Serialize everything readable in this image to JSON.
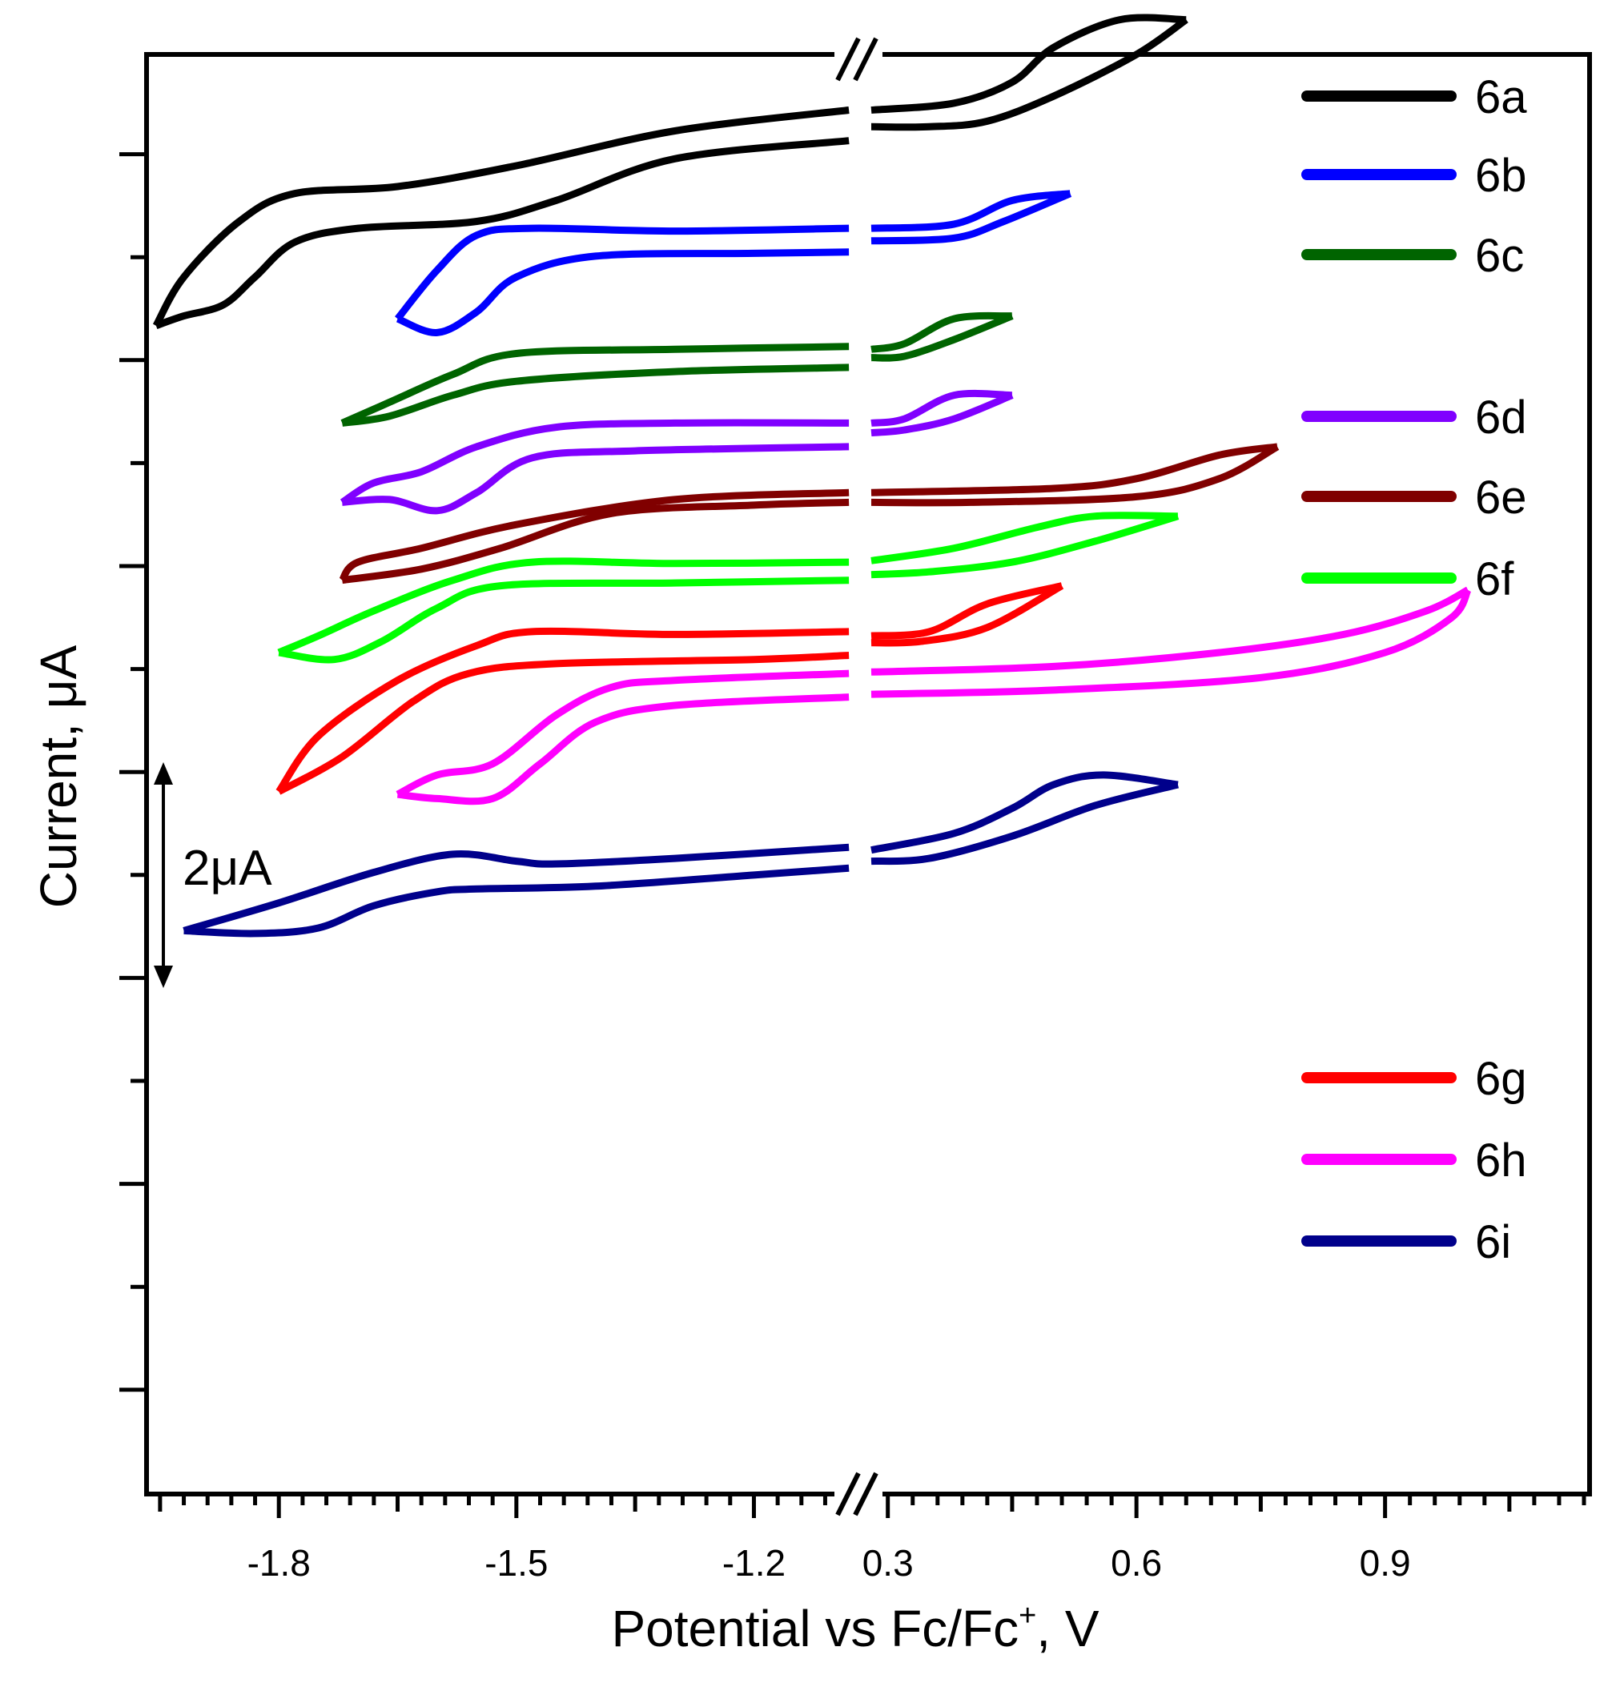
{
  "chart_data": {
    "type": "line",
    "title": "",
    "xlabel": "Potential vs Fc/Fc",
    "xlabel_sup": "+",
    "xlabel_suffix": ", V",
    "ylabel": "Current, μA",
    "scale_bar_label": "2μA",
    "scale_bar_value_uA": 2,
    "axis_break": "//",
    "x_segments": [
      {
        "range": [
          -1.96,
          -1.07
        ],
        "ticks": [
          "-1.8",
          "-1.5",
          "-1.2"
        ],
        "tick_values": [
          -1.8,
          -1.5,
          -1.2
        ]
      },
      {
        "range": [
          0.28,
          1.14
        ],
        "ticks": [
          "0.3",
          "0.6",
          "0.9"
        ],
        "tick_values": [
          0.3,
          0.6,
          0.9
        ]
      }
    ],
    "ylim": [
      -1.85,
      8.5
    ],
    "y_ticks_labeled": false,
    "series": [
      {
        "name": "6a",
        "color": "#000000",
        "neg_forward": [
          [
            -1.08,
            8.1
          ],
          [
            -1.3,
            7.95
          ],
          [
            -1.5,
            7.7
          ],
          [
            -1.65,
            7.55
          ],
          [
            -1.78,
            7.5
          ],
          [
            -1.85,
            7.3
          ],
          [
            -1.92,
            6.9
          ],
          [
            -1.955,
            6.55
          ]
        ],
        "neg_return": [
          [
            -1.955,
            6.55
          ],
          [
            -1.92,
            6.62
          ],
          [
            -1.87,
            6.7
          ],
          [
            -1.83,
            6.9
          ],
          [
            -1.78,
            7.15
          ],
          [
            -1.7,
            7.25
          ],
          [
            -1.55,
            7.3
          ],
          [
            -1.45,
            7.45
          ],
          [
            -1.3,
            7.75
          ],
          [
            -1.08,
            7.88
          ]
        ],
        "pos_forward": [
          [
            0.28,
            8.1
          ],
          [
            0.38,
            8.15
          ],
          [
            0.45,
            8.3
          ],
          [
            0.5,
            8.55
          ],
          [
            0.58,
            8.75
          ],
          [
            0.66,
            8.75
          ]
        ],
        "pos_return": [
          [
            0.66,
            8.75
          ],
          [
            0.6,
            8.5
          ],
          [
            0.5,
            8.2
          ],
          [
            0.42,
            8.02
          ],
          [
            0.35,
            7.98
          ],
          [
            0.28,
            7.98
          ]
        ]
      },
      {
        "name": "6b",
        "color": "#0000ff",
        "neg_forward": [
          [
            -1.08,
            7.25
          ],
          [
            -1.3,
            7.23
          ],
          [
            -1.48,
            7.25
          ],
          [
            -1.55,
            7.2
          ],
          [
            -1.6,
            6.95
          ],
          [
            -1.65,
            6.6
          ]
        ],
        "neg_return": [
          [
            -1.65,
            6.6
          ],
          [
            -1.6,
            6.5
          ],
          [
            -1.55,
            6.65
          ],
          [
            -1.5,
            6.9
          ],
          [
            -1.4,
            7.05
          ],
          [
            -1.2,
            7.07
          ],
          [
            -1.08,
            7.08
          ]
        ],
        "pos_forward": [
          [
            0.28,
            7.25
          ],
          [
            0.38,
            7.28
          ],
          [
            0.45,
            7.45
          ],
          [
            0.52,
            7.5
          ]
        ],
        "pos_return": [
          [
            0.52,
            7.5
          ],
          [
            0.44,
            7.3
          ],
          [
            0.38,
            7.18
          ],
          [
            0.28,
            7.16
          ]
        ]
      },
      {
        "name": "6c",
        "color": "#006400",
        "neg_forward": [
          [
            -1.08,
            6.4
          ],
          [
            -1.3,
            6.38
          ],
          [
            -1.5,
            6.35
          ],
          [
            -1.58,
            6.2
          ],
          [
            -1.66,
            6.0
          ],
          [
            -1.72,
            5.85
          ]
        ],
        "neg_return": [
          [
            -1.72,
            5.85
          ],
          [
            -1.66,
            5.9
          ],
          [
            -1.58,
            6.05
          ],
          [
            -1.5,
            6.15
          ],
          [
            -1.3,
            6.22
          ],
          [
            -1.08,
            6.25
          ]
        ],
        "pos_forward": [
          [
            0.28,
            6.38
          ],
          [
            0.32,
            6.42
          ],
          [
            0.38,
            6.6
          ],
          [
            0.45,
            6.62
          ]
        ],
        "pos_return": [
          [
            0.45,
            6.62
          ],
          [
            0.38,
            6.45
          ],
          [
            0.32,
            6.33
          ],
          [
            0.28,
            6.32
          ]
        ]
      },
      {
        "name": "6d",
        "color": "#8000ff",
        "neg_forward": [
          [
            -1.08,
            5.85
          ],
          [
            -1.3,
            5.85
          ],
          [
            -1.45,
            5.82
          ],
          [
            -1.55,
            5.68
          ],
          [
            -1.62,
            5.5
          ],
          [
            -1.68,
            5.42
          ],
          [
            -1.72,
            5.28
          ]
        ],
        "neg_return": [
          [
            -1.72,
            5.28
          ],
          [
            -1.66,
            5.3
          ],
          [
            -1.6,
            5.22
          ],
          [
            -1.55,
            5.35
          ],
          [
            -1.48,
            5.6
          ],
          [
            -1.35,
            5.65
          ],
          [
            -1.08,
            5.68
          ]
        ],
        "pos_forward": [
          [
            0.28,
            5.85
          ],
          [
            0.32,
            5.88
          ],
          [
            0.38,
            6.05
          ],
          [
            0.45,
            6.05
          ]
        ],
        "pos_return": [
          [
            0.45,
            6.05
          ],
          [
            0.38,
            5.88
          ],
          [
            0.32,
            5.8
          ],
          [
            0.28,
            5.78
          ]
        ]
      },
      {
        "name": "6e",
        "color": "#800000",
        "neg_forward": [
          [
            -1.08,
            5.35
          ],
          [
            -1.3,
            5.3
          ],
          [
            -1.5,
            5.12
          ],
          [
            -1.62,
            4.95
          ],
          [
            -1.7,
            4.85
          ],
          [
            -1.72,
            4.72
          ]
        ],
        "neg_return": [
          [
            -1.72,
            4.72
          ],
          [
            -1.62,
            4.8
          ],
          [
            -1.52,
            4.95
          ],
          [
            -1.38,
            5.2
          ],
          [
            -1.2,
            5.26
          ],
          [
            -1.08,
            5.28
          ]
        ],
        "pos_forward": [
          [
            0.28,
            5.35
          ],
          [
            0.5,
            5.38
          ],
          [
            0.6,
            5.45
          ],
          [
            0.7,
            5.62
          ],
          [
            0.77,
            5.68
          ]
        ],
        "pos_return": [
          [
            0.77,
            5.68
          ],
          [
            0.7,
            5.45
          ],
          [
            0.6,
            5.32
          ],
          [
            0.4,
            5.28
          ],
          [
            0.28,
            5.28
          ]
        ]
      },
      {
        "name": "6f",
        "color": "#00ff00",
        "neg_forward": [
          [
            -1.08,
            4.85
          ],
          [
            -1.3,
            4.84
          ],
          [
            -1.48,
            4.85
          ],
          [
            -1.58,
            4.72
          ],
          [
            -1.68,
            4.5
          ],
          [
            -1.75,
            4.32
          ],
          [
            -1.8,
            4.2
          ]
        ],
        "neg_return": [
          [
            -1.8,
            4.2
          ],
          [
            -1.73,
            4.15
          ],
          [
            -1.67,
            4.28
          ],
          [
            -1.6,
            4.52
          ],
          [
            -1.52,
            4.68
          ],
          [
            -1.3,
            4.7
          ],
          [
            -1.08,
            4.72
          ]
        ],
        "pos_forward": [
          [
            0.28,
            4.86
          ],
          [
            0.38,
            4.95
          ],
          [
            0.48,
            5.1
          ],
          [
            0.55,
            5.18
          ],
          [
            0.65,
            5.18
          ]
        ],
        "pos_return": [
          [
            0.65,
            5.18
          ],
          [
            0.55,
            5.0
          ],
          [
            0.45,
            4.85
          ],
          [
            0.35,
            4.78
          ],
          [
            0.28,
            4.76
          ]
        ]
      },
      {
        "name": "6g",
        "color": "#ff0000",
        "neg_forward": [
          [
            -1.08,
            4.35
          ],
          [
            -1.3,
            4.33
          ],
          [
            -1.48,
            4.35
          ],
          [
            -1.55,
            4.25
          ],
          [
            -1.65,
            4.0
          ],
          [
            -1.75,
            3.6
          ],
          [
            -1.8,
            3.2
          ]
        ],
        "neg_return": [
          [
            -1.8,
            3.2
          ],
          [
            -1.72,
            3.45
          ],
          [
            -1.63,
            3.85
          ],
          [
            -1.56,
            4.05
          ],
          [
            -1.45,
            4.12
          ],
          [
            -1.2,
            4.15
          ],
          [
            -1.08,
            4.18
          ]
        ],
        "pos_forward": [
          [
            0.28,
            4.32
          ],
          [
            0.35,
            4.35
          ],
          [
            0.42,
            4.55
          ],
          [
            0.51,
            4.68
          ]
        ],
        "pos_return": [
          [
            0.51,
            4.68
          ],
          [
            0.42,
            4.38
          ],
          [
            0.34,
            4.28
          ],
          [
            0.28,
            4.27
          ]
        ]
      },
      {
        "name": "6h",
        "color": "#ff00ff",
        "neg_forward": [
          [
            -1.08,
            4.05
          ],
          [
            -1.3,
            4.0
          ],
          [
            -1.38,
            3.95
          ],
          [
            -1.45,
            3.75
          ],
          [
            -1.53,
            3.4
          ],
          [
            -1.6,
            3.32
          ],
          [
            -1.65,
            3.18
          ]
        ],
        "neg_return": [
          [
            -1.65,
            3.18
          ],
          [
            -1.6,
            3.15
          ],
          [
            -1.53,
            3.15
          ],
          [
            -1.47,
            3.4
          ],
          [
            -1.4,
            3.7
          ],
          [
            -1.3,
            3.82
          ],
          [
            -1.08,
            3.88
          ]
        ],
        "pos_forward": [
          [
            0.28,
            4.06
          ],
          [
            0.5,
            4.1
          ],
          [
            0.7,
            4.2
          ],
          [
            0.85,
            4.33
          ],
          [
            0.95,
            4.5
          ],
          [
            1.0,
            4.65
          ]
        ],
        "pos_return": [
          [
            1.0,
            4.65
          ],
          [
            0.98,
            4.45
          ],
          [
            0.9,
            4.2
          ],
          [
            0.75,
            4.02
          ],
          [
            0.5,
            3.93
          ],
          [
            0.28,
            3.9
          ]
        ]
      },
      {
        "name": "6i",
        "color": "#00008b",
        "neg_forward": [
          [
            -1.08,
            2.8
          ],
          [
            -1.3,
            2.72
          ],
          [
            -1.45,
            2.68
          ],
          [
            -1.5,
            2.7
          ],
          [
            -1.58,
            2.75
          ],
          [
            -1.68,
            2.62
          ],
          [
            -1.8,
            2.4
          ],
          [
            -1.92,
            2.2
          ]
        ],
        "neg_return": [
          [
            -1.92,
            2.2
          ],
          [
            -1.83,
            2.18
          ],
          [
            -1.75,
            2.22
          ],
          [
            -1.68,
            2.38
          ],
          [
            -1.6,
            2.48
          ],
          [
            -1.55,
            2.5
          ],
          [
            -1.4,
            2.52
          ],
          [
            -1.2,
            2.6
          ],
          [
            -1.08,
            2.65
          ]
        ],
        "pos_forward": [
          [
            0.28,
            2.78
          ],
          [
            0.38,
            2.9
          ],
          [
            0.45,
            3.08
          ],
          [
            0.5,
            3.25
          ],
          [
            0.56,
            3.32
          ],
          [
            0.65,
            3.25
          ]
        ],
        "pos_return": [
          [
            0.65,
            3.25
          ],
          [
            0.55,
            3.1
          ],
          [
            0.45,
            2.88
          ],
          [
            0.35,
            2.72
          ],
          [
            0.28,
            2.7
          ]
        ]
      }
    ]
  }
}
